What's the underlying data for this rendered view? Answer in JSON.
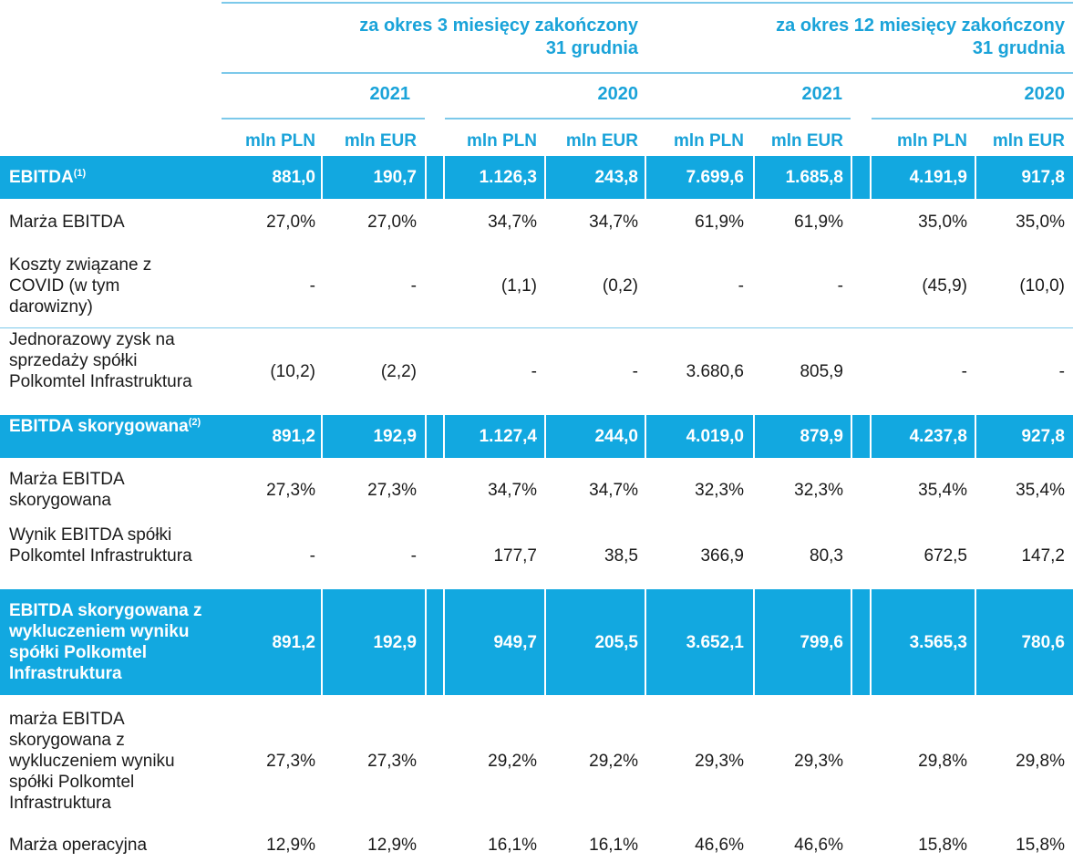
{
  "header": {
    "period_3m": "za okres 3 miesięcy zakończony",
    "period_12m": "za okres 12 miesięcy zakończony",
    "period_end": "31 grudnia",
    "years": [
      "2021",
      "2020",
      "2021",
      "2020"
    ],
    "currencies": [
      "mln PLN",
      "mln EUR",
      "mln PLN",
      "mln EUR",
      "mln PLN",
      "mln EUR",
      "mln PLN",
      "mln EUR"
    ]
  },
  "rows": [
    {
      "label": "EBITDA",
      "sup": "(1)",
      "highlight": true,
      "values": [
        "881,0",
        "190,7",
        "1.126,3",
        "243,8",
        "7.699,6",
        "1.685,8",
        "4.191,9",
        "917,8"
      ]
    },
    {
      "label": "Marża EBITDA",
      "sup": "",
      "highlight": false,
      "values": [
        "27,0%",
        "27,0%",
        "34,7%",
        "34,7%",
        "61,9%",
        "61,9%",
        "35,0%",
        "35,0%"
      ]
    },
    {
      "label": "Koszty związane z COVID (w tym darowizny)",
      "sup": "",
      "highlight": false,
      "values": [
        "-",
        "-",
        "(1,1)",
        "(0,2)",
        "-",
        "-",
        "(45,9)",
        "(10,0)"
      ]
    },
    {
      "label": "Jednorazowy zysk na sprzedaży spółki Polkomtel Infrastruktura",
      "sup": "",
      "highlight": false,
      "values": [
        "(10,2)",
        "(2,2)",
        "-",
        "-",
        "3.680,6",
        "805,9",
        "-",
        "-"
      ]
    },
    {
      "label": "EBITDA skorygowana",
      "sup": "(2)",
      "highlight": true,
      "values": [
        "891,2",
        "192,9",
        "1.127,4",
        "244,0",
        "4.019,0",
        "879,9",
        "4.237,8",
        "927,8"
      ]
    },
    {
      "label": "Marża EBITDA skorygowana",
      "sup": "",
      "highlight": false,
      "values": [
        "27,3%",
        "27,3%",
        "34,7%",
        "34,7%",
        "32,3%",
        "32,3%",
        "35,4%",
        "35,4%"
      ]
    },
    {
      "label": "Wynik EBITDA spółki Polkomtel Infrastruktura",
      "sup": "",
      "highlight": false,
      "values": [
        "-",
        "-",
        "177,7",
        "38,5",
        "366,9",
        "80,3",
        "672,5",
        "147,2"
      ]
    },
    {
      "label": "EBITDA skorygowana z wykluczeniem wyniku spółki Polkomtel Infrastruktura",
      "sup": "",
      "highlight": true,
      "values": [
        "891,2",
        "192,9",
        "949,7",
        "205,5",
        "3.652,1",
        "799,6",
        "3.565,3",
        "780,6"
      ]
    },
    {
      "label": "marża EBITDA skorygowana z wykluczeniem wyniku spółki Polkomtel Infrastruktura",
      "sup": "",
      "highlight": false,
      "values": [
        "27,3%",
        "27,3%",
        "29,2%",
        "29,2%",
        "29,3%",
        "29,3%",
        "29,8%",
        "29,8%"
      ]
    },
    {
      "label": "Marża operacyjna",
      "sup": "",
      "highlight": false,
      "values": [
        "12,9%",
        "12,9%",
        "16,1%",
        "16,1%",
        "46,6%",
        "46,6%",
        "15,8%",
        "15,8%"
      ]
    }
  ]
}
